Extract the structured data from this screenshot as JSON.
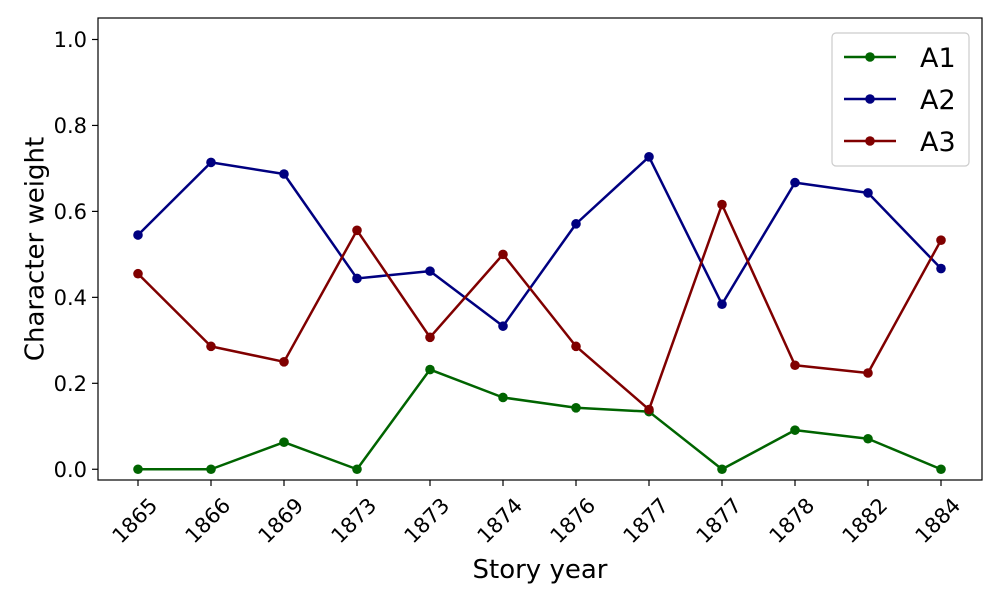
{
  "chart_data": {
    "type": "line",
    "title": "",
    "xlabel": "Story year",
    "ylabel": "Character weight",
    "categories": [
      "1865",
      "1866",
      "1869",
      "1873",
      "1873",
      "1874",
      "1876",
      "1877",
      "1877",
      "1878",
      "1882",
      "1884"
    ],
    "ylim": [
      -0.025,
      1.05
    ],
    "yticks": [
      "0.0",
      "0.2",
      "0.4",
      "0.6",
      "0.8",
      "1.0"
    ],
    "ytick_values": [
      0.0,
      0.2,
      0.4,
      0.6,
      0.8,
      1.0
    ],
    "grid": false,
    "legend_position": "top-right",
    "series": [
      {
        "name": "A1",
        "color": "#006400",
        "values": [
          0.0,
          0.0,
          0.063,
          0.0,
          0.232,
          0.167,
          0.143,
          0.134,
          0.0,
          0.091,
          0.071,
          0.0
        ]
      },
      {
        "name": "A2",
        "color": "#000080",
        "values": [
          0.545,
          0.714,
          0.687,
          0.444,
          0.461,
          0.333,
          0.571,
          0.727,
          0.384,
          0.667,
          0.643,
          0.467
        ]
      },
      {
        "name": "A3",
        "color": "#800000",
        "values": [
          0.455,
          0.286,
          0.25,
          0.556,
          0.307,
          0.5,
          0.286,
          0.139,
          0.616,
          0.242,
          0.224,
          0.533
        ]
      }
    ]
  }
}
